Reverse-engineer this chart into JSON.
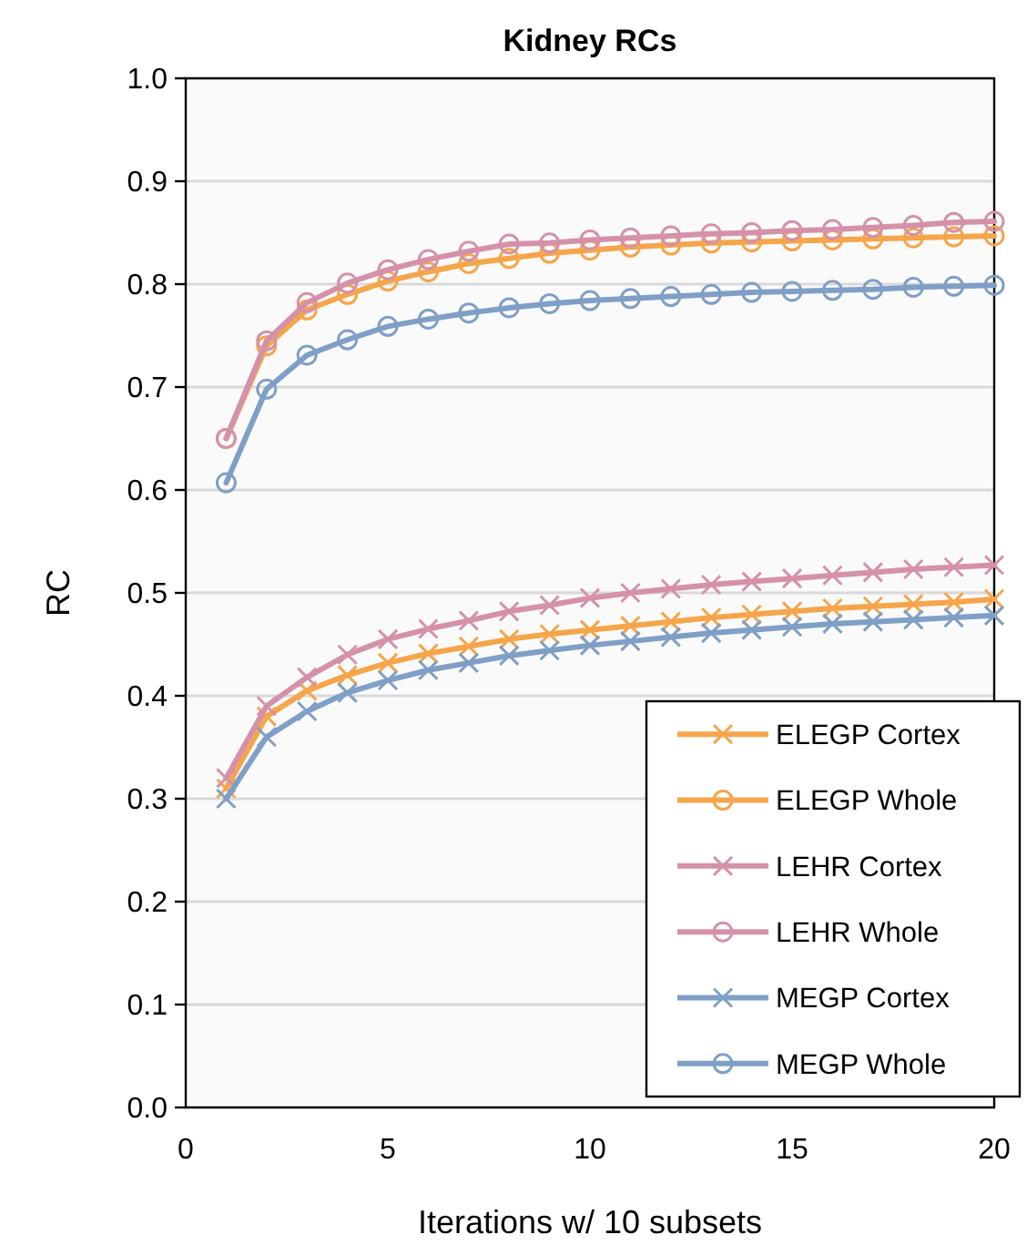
{
  "chart_data": {
    "type": "line",
    "title": "Kidney RCs",
    "xlabel": "Iterations w/ 10 subsets",
    "ylabel": "RC",
    "x": [
      1,
      2,
      3,
      4,
      5,
      6,
      7,
      8,
      9,
      10,
      11,
      12,
      13,
      14,
      15,
      16,
      17,
      18,
      19,
      20
    ],
    "xlim": [
      0,
      20
    ],
    "xticks": [
      0,
      5,
      10,
      15,
      20
    ],
    "ylim": [
      0,
      1
    ],
    "yticks": [
      {
        "value": 0,
        "label": "0.0"
      },
      {
        "value": 0.1,
        "label": "0.1"
      },
      {
        "value": 0.2,
        "label": "0.2"
      },
      {
        "value": 0.3,
        "label": "0.3"
      },
      {
        "value": 0.4,
        "label": "0.4"
      },
      {
        "value": 0.5,
        "label": "0.5"
      },
      {
        "value": 0.6,
        "label": "0.6"
      },
      {
        "value": 0.7,
        "label": "0.7"
      },
      {
        "value": 0.8,
        "label": "0.8"
      },
      {
        "value": 0.9,
        "label": "0.9"
      },
      {
        "value": 1,
        "label": "1.0"
      }
    ],
    "grid": "y",
    "legend": "bottom right",
    "line_style": "solid",
    "series": [
      {
        "name": "ELEGP Cortex",
        "color": "#f5a54a",
        "marker": "cross",
        "values": [
          0.31,
          0.38,
          0.405,
          0.42,
          0.432,
          0.441,
          0.448,
          0.455,
          0.46,
          0.464,
          0.468,
          0.472,
          0.476,
          0.479,
          0.482,
          0.485,
          0.487,
          0.489,
          0.491,
          0.494
        ]
      },
      {
        "name": "ELEGP Whole",
        "color": "#f5a54a",
        "marker": "circle",
        "values": [
          0.65,
          0.74,
          0.775,
          0.79,
          0.803,
          0.812,
          0.82,
          0.825,
          0.83,
          0.833,
          0.836,
          0.838,
          0.84,
          0.841,
          0.842,
          0.843,
          0.844,
          0.845,
          0.846,
          0.847
        ]
      },
      {
        "name": "LEHR Cortex",
        "color": "#d591aa",
        "marker": "cross",
        "values": [
          0.32,
          0.39,
          0.418,
          0.44,
          0.455,
          0.465,
          0.473,
          0.482,
          0.488,
          0.495,
          0.5,
          0.504,
          0.508,
          0.511,
          0.514,
          0.517,
          0.52,
          0.523,
          0.525,
          0.527
        ]
      },
      {
        "name": "LEHR Whole",
        "color": "#d591aa",
        "marker": "circle",
        "values": [
          0.65,
          0.745,
          0.782,
          0.801,
          0.814,
          0.824,
          0.832,
          0.839,
          0.84,
          0.843,
          0.845,
          0.847,
          0.849,
          0.85,
          0.852,
          0.853,
          0.855,
          0.857,
          0.86,
          0.861
        ]
      },
      {
        "name": "MEGP Cortex",
        "color": "#7f9fc6",
        "marker": "cross",
        "values": [
          0.3,
          0.36,
          0.385,
          0.403,
          0.415,
          0.425,
          0.432,
          0.439,
          0.444,
          0.449,
          0.453,
          0.457,
          0.461,
          0.464,
          0.467,
          0.47,
          0.472,
          0.474,
          0.476,
          0.478
        ]
      },
      {
        "name": "MEGP Whole",
        "color": "#7f9fc6",
        "marker": "circle",
        "values": [
          0.607,
          0.698,
          0.731,
          0.746,
          0.759,
          0.766,
          0.772,
          0.777,
          0.781,
          0.784,
          0.786,
          0.788,
          0.79,
          0.792,
          0.793,
          0.794,
          0.795,
          0.797,
          0.798,
          0.799
        ]
      }
    ]
  }
}
